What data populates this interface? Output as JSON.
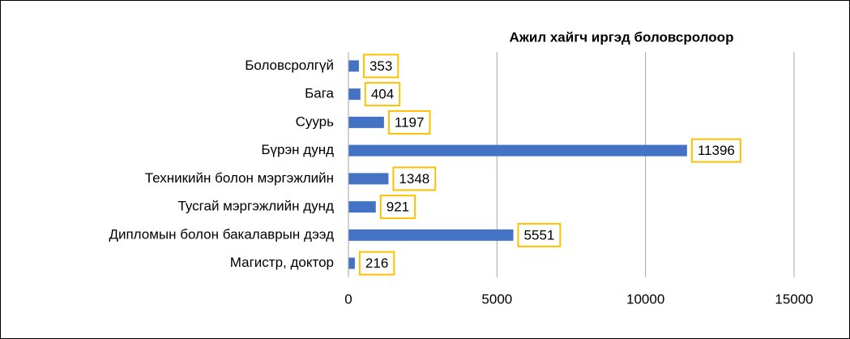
{
  "chart_data": {
    "type": "bar",
    "orientation": "horizontal",
    "title": "Ажил хайгч иргэд боловсролоор",
    "categories": [
      "Боловсролгүй",
      "Бага",
      "Суурь",
      "Бүрэн дунд",
      "Техникийн болон мэргэжлийн",
      "Тусгай мэргэжлийн дунд",
      "Дипломын болон бакалаврын дээд",
      "Магистр, доктор"
    ],
    "values": [
      353,
      404,
      1197,
      11396,
      1348,
      921,
      5551,
      216
    ],
    "color": "#4472c4",
    "label_border_color": "#ffc000",
    "xlim": [
      0,
      15000
    ],
    "xticks": [
      0,
      5000,
      10000,
      15000
    ],
    "grid": true
  }
}
